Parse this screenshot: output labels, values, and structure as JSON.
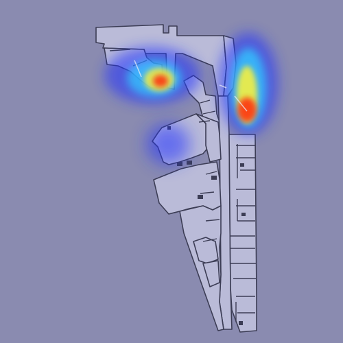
{
  "view": {
    "background_color": "#8a8bb0",
    "floor_fill": "#babbd8",
    "wall_stroke": "#3c3d55",
    "door_color": "#eceef7"
  },
  "heatmap": {
    "palette": [
      "#2030ff",
      "#30c8ff",
      "#f6f040",
      "#ff2a10"
    ],
    "hotspots": [
      {
        "name": "upper-left-room",
        "intensity": 1.0
      },
      {
        "name": "north-corridor",
        "intensity": 1.0
      },
      {
        "name": "mid-left-wing",
        "intensity": 0.35
      }
    ]
  }
}
